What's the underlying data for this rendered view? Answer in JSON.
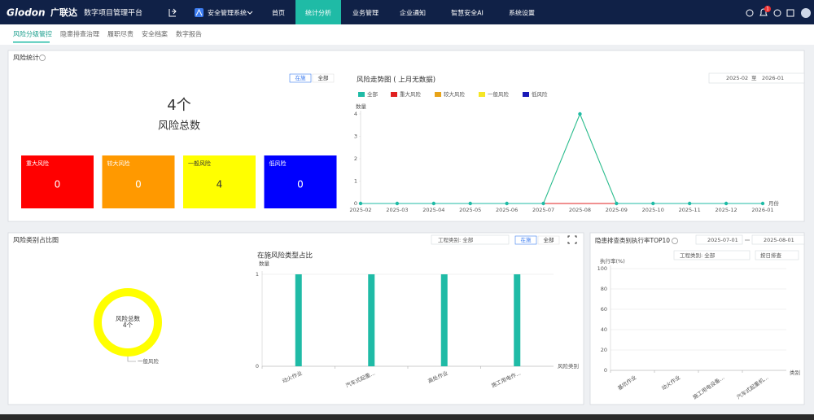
{
  "nav": {
    "brand": "Glodon",
    "brand_cn": "广联达",
    "platform": "数字项目管理平台",
    "system": "安全管理系统",
    "menu": [
      "首页",
      "统计分析",
      "业务管理",
      "企业通知",
      "智慧安全AI",
      "系统设置"
    ],
    "active_menu": 1,
    "notice_badge": 1
  },
  "tabs": [
    "风险分级管控",
    "隐患排查治理",
    "履职尽责",
    "安全档案",
    "数字报告"
  ],
  "risk_stats": {
    "title": "风险统计",
    "toggle": [
      "在施",
      "全部"
    ],
    "total_label": "4个",
    "total_caption": "风险总数",
    "cards": [
      {
        "label": "重大风险",
        "value": 0,
        "color": "#ff0000"
      },
      {
        "label": "较大风险",
        "value": 0,
        "color": "#ff9900"
      },
      {
        "label": "一般风险",
        "value": 4,
        "color": "#ffff00"
      },
      {
        "label": "低风险",
        "value": 0,
        "color": "#0000ff"
      }
    ]
  },
  "risk_category": {
    "title": "风险类别占比图",
    "filter": "工程类别: 全部",
    "toggle": [
      "在施",
      "全部"
    ]
  },
  "hazard_panel": {
    "title": "隐患排查类别执行率TOP10",
    "date_from": "2025-07-01",
    "date_to": "2025-08-01",
    "filter": "工程类别: 全部",
    "mode": "按日排查"
  },
  "chart_data": [
    {
      "type": "line",
      "title": "风险走势图 ( 上月无数据)",
      "date_from": "2025-02",
      "date_sep": "至",
      "date_to": "2026-01",
      "y_label": "数量",
      "x_label": "月份",
      "categories": [
        "2025-02",
        "2025-03",
        "2025-04",
        "2025-05",
        "2025-06",
        "2025-07",
        "2025-08",
        "2025-09",
        "2025-10",
        "2025-11",
        "2025-12",
        "2026-01"
      ],
      "ylim": [
        0,
        4
      ],
      "yticks": [
        0,
        1,
        2,
        3,
        4
      ],
      "grid": false,
      "series": [
        {
          "name": "全部",
          "color": "#1fbba6",
          "values": [
            0,
            0,
            0,
            0,
            0,
            0,
            4,
            0,
            0,
            0,
            0,
            0
          ]
        },
        {
          "name": "重大风险",
          "color": "#e02020",
          "values": [
            0,
            0,
            0,
            0,
            0,
            0,
            0,
            0,
            0,
            0,
            0,
            0
          ]
        },
        {
          "name": "较大风险",
          "color": "#e8a317",
          "values": [
            0,
            0,
            0,
            0,
            0,
            0,
            0,
            0,
            0,
            0,
            0,
            0
          ]
        },
        {
          "name": "一般风险",
          "color": "#f5e625",
          "values": [
            0,
            0,
            0,
            0,
            0,
            0,
            4,
            0,
            0,
            0,
            0,
            0
          ]
        },
        {
          "name": "低风险",
          "color": "#1a1ab8",
          "values": [
            0,
            0,
            0,
            0,
            0,
            0,
            0,
            0,
            0,
            0,
            0,
            0
          ]
        }
      ]
    },
    {
      "type": "pie",
      "donut": true,
      "center_title": "风险总数",
      "center_value": "4个",
      "categories": [
        "一般风险"
      ],
      "values": [
        4
      ],
      "colors": [
        "#ffff00"
      ]
    },
    {
      "type": "bar",
      "title": "在施风险类型占比",
      "y_label": "数量",
      "x_label": "风险类别",
      "categories": [
        "动火作业",
        "汽车式起重...",
        "高处作业",
        "施工用电作..."
      ],
      "values": [
        1,
        1,
        1,
        1
      ],
      "color": "#1fbba6",
      "ylim": [
        0,
        1
      ],
      "yticks": [
        0,
        1
      ],
      "grid": true
    },
    {
      "type": "bar",
      "y_label": "执行率(%)",
      "x_label": "类别",
      "categories": [
        "基坑作业",
        "动火作业",
        "施工用电设备...",
        "汽车式起重机..."
      ],
      "values": [
        0,
        0,
        0,
        0
      ],
      "color": "#1fbba6",
      "ylim": [
        0,
        100
      ],
      "yticks": [
        0,
        20,
        40,
        60,
        80,
        100
      ],
      "grid": true
    }
  ]
}
